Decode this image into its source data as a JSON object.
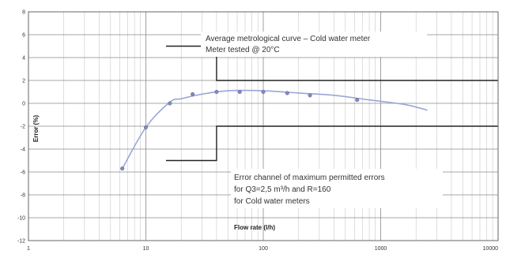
{
  "chart_data": {
    "type": "line",
    "x_scale": "log",
    "xlim": [
      1,
      10000
    ],
    "ylim": [
      -12,
      8
    ],
    "xlabel": "Flow rate (l/h)",
    "ylabel": "Error (%)",
    "x_ticks": [
      "1",
      "10",
      "100",
      "1000",
      "10000"
    ],
    "y_ticks": [
      "8",
      "6",
      "4",
      "2",
      "0",
      "-2",
      "-4",
      "-6",
      "-8",
      "-10",
      "-12"
    ],
    "grid": true,
    "series": [
      {
        "name": "Average metrological curve – Cold water meter",
        "color": "#9aa6d6",
        "x": [
          6.3,
          10,
          16,
          20,
          30,
          50,
          100,
          200,
          400,
          800,
          1600,
          2500
        ],
        "y": [
          -5.7,
          -2.1,
          0.1,
          0.4,
          0.8,
          1.1,
          1.1,
          0.9,
          0.7,
          0.3,
          -0.1,
          -0.6
        ]
      }
    ],
    "markers": {
      "x": [
        6.3,
        10,
        16,
        25,
        40,
        63,
        100,
        160,
        250,
        630
      ],
      "y": [
        -5.7,
        -2.1,
        0.0,
        0.8,
        1.0,
        1.0,
        1.0,
        0.9,
        0.7,
        0.3
      ]
    },
    "error_channel": {
      "q1": 40,
      "inner_y_min": -5,
      "inner_y_max": 5,
      "outer_y_min": -2,
      "outer_y_max": 2,
      "x_end": 10000,
      "color": "#222222"
    },
    "annotations": [
      {
        "id": "curve-title",
        "lines": [
          "Average metrological curve – Cold water meter",
          "Meter tested @ 20°C"
        ]
      },
      {
        "id": "channel-note",
        "lines": [
          "Error channel of maximum permitted errors",
          "for Q3=2,5 m³/h and R=160",
          "for Cold water meters"
        ]
      }
    ]
  }
}
